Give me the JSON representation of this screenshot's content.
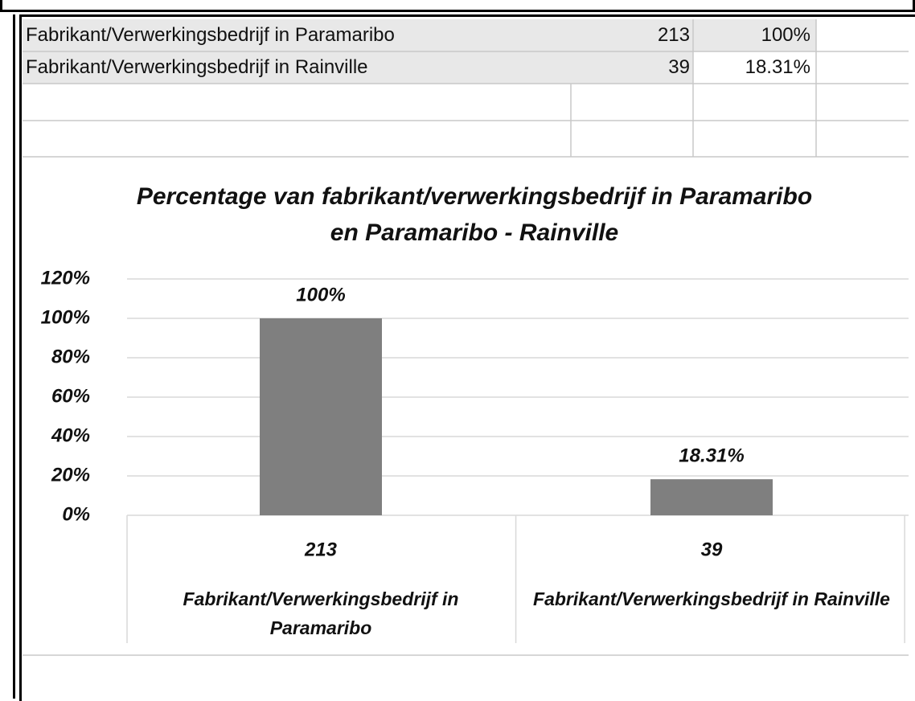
{
  "table": {
    "rows": [
      [
        "Fabrikant/Verwerkingsbedrijf in Paramaribo",
        213,
        "100%"
      ],
      [
        "Fabrikant/Verwerkingsbedrijf in Rainville",
        39,
        "18.31%"
      ]
    ]
  },
  "chart_data": {
    "type": "bar",
    "title": "Percentage van fabrikant/verwerkingsbedrijf in Paramaribo en Paramaribo - Rainville",
    "categories": [
      "Fabrikant/Verwerkingsbedrijf in Paramaribo",
      "Fabrikant/Verwerkingsbedrijf in Rainville"
    ],
    "category_counts": [
      213,
      39
    ],
    "values": [
      100,
      18.31
    ],
    "value_labels": [
      "100%",
      "18.31%"
    ],
    "color": "#7f7f7f",
    "ylim": [
      0,
      120
    ],
    "yticks": [
      {
        "value": 0,
        "label": "0%"
      },
      {
        "value": 20,
        "label": "20%"
      },
      {
        "value": 40,
        "label": "40%"
      },
      {
        "value": 60,
        "label": "60%"
      },
      {
        "value": 80,
        "label": "80%"
      },
      {
        "value": 100,
        "label": "100%"
      },
      {
        "value": 120,
        "label": "120%"
      }
    ],
    "grid": true
  }
}
